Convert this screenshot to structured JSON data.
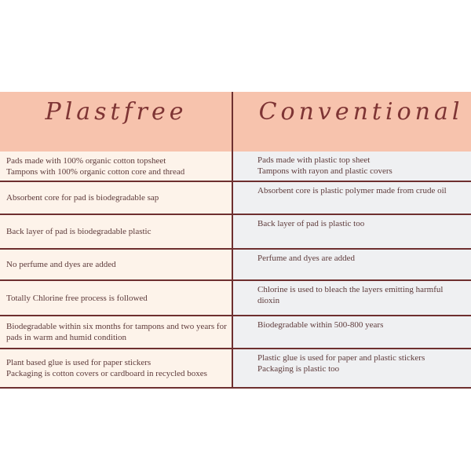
{
  "header": {
    "left": "Plastfree",
    "right": "Conventional"
  },
  "rows": [
    {
      "left": "Pads made with 100% organic cotton topsheet\nTampons with 100% organic cotton core and thread",
      "right": "Pads made with plastic top sheet\nTampons with rayon and plastic covers"
    },
    {
      "left": "Absorbent core for pad is biodegradable sap",
      "right": "Absorbent core is plastic polymer made from crude oil"
    },
    {
      "left": "Back layer of pad is biodegradable plastic",
      "right": "Back layer of pad is plastic too"
    },
    {
      "left": "No perfume and dyes are added",
      "right": "Perfume and dyes are added"
    },
    {
      "left": "Totally Chlorine free process is followed",
      "right": "Chlorine is used to bleach the layers emitting harmful dioxin"
    },
    {
      "left": "Biodegradable within six months for tampons and two years for pads in warm and humid condition",
      "right": "Biodegradable within 500-800 years"
    },
    {
      "left": "Plant based glue is used for paper stickers\nPackaging is cotton covers or cardboard in recycled boxes",
      "right": "Plastic glue is used for paper and plastic stickers\nPackaging is plastic too"
    }
  ]
}
